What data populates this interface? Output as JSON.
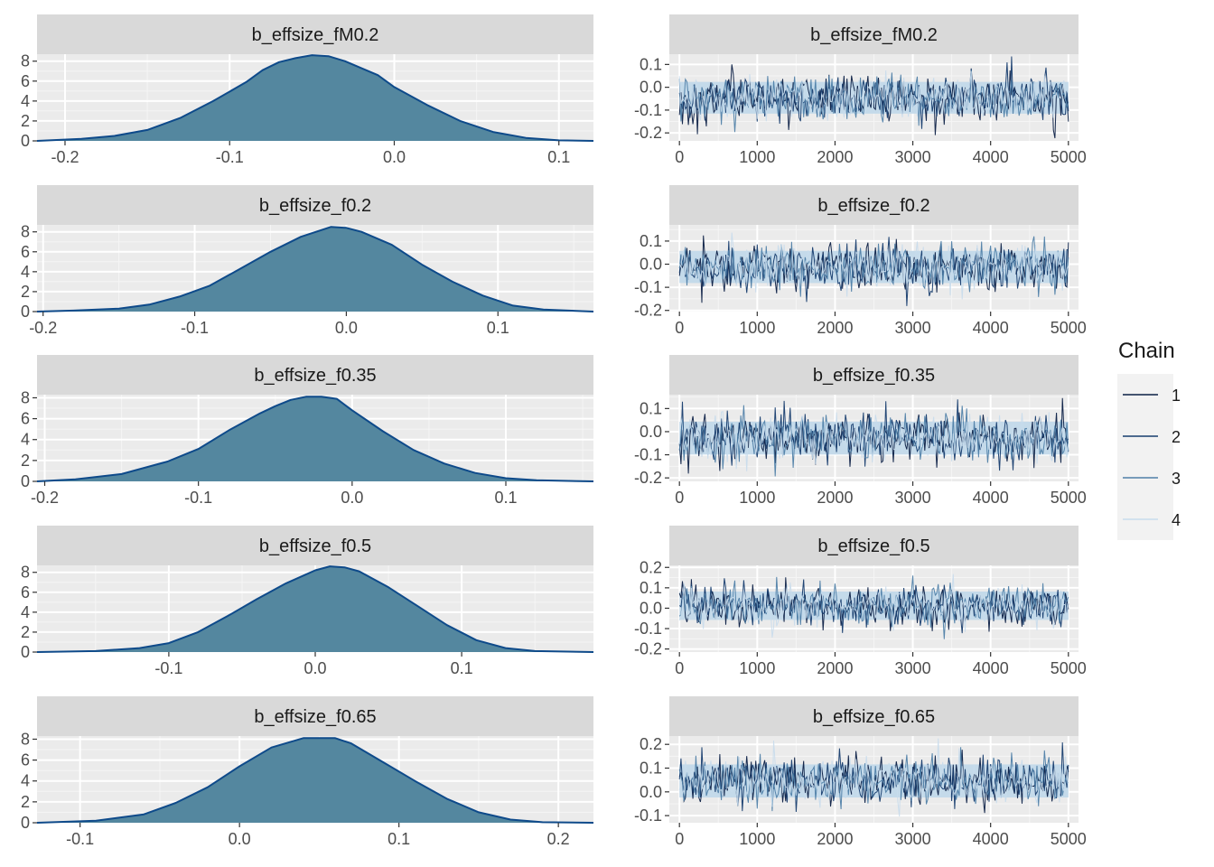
{
  "colors": {
    "panel_bg": "#EBEBEB",
    "strip_bg": "#D9D9D9",
    "grid_major": "#FFFFFF",
    "density_fill": "#54879F",
    "density_line": "#0E4A8A",
    "trace_band": "#C4DAEA"
  },
  "legend": {
    "title": "Chain",
    "items": [
      {
        "label": "1",
        "color": "#0B1F45"
      },
      {
        "label": "2",
        "color": "#163C6E"
      },
      {
        "label": "3",
        "color": "#4F7FA8"
      },
      {
        "label": "4",
        "color": "#C8DCEC"
      }
    ]
  },
  "chart_data": [
    {
      "type": "area",
      "kind": "density",
      "title": "b_effsize_fM0.2",
      "xlim": [
        -0.217,
        0.121
      ],
      "ylim": [
        0,
        8.7
      ],
      "x_ticks": [
        -0.2,
        -0.1,
        0.0,
        0.1
      ],
      "x_tick_labels": [
        "-0.2",
        "-0.1",
        "0.0",
        "0.1"
      ],
      "y_ticks": [
        0,
        2,
        4,
        6,
        8
      ],
      "y_tick_labels": [
        "0",
        "2",
        "4",
        "6",
        "8"
      ],
      "x": [
        -0.217,
        -0.19,
        -0.17,
        -0.15,
        -0.13,
        -0.11,
        -0.09,
        -0.08,
        -0.07,
        -0.06,
        -0.05,
        -0.04,
        -0.03,
        -0.02,
        -0.01,
        0.0,
        0.02,
        0.04,
        0.06,
        0.08,
        0.1,
        0.121
      ],
      "y": [
        0,
        0.2,
        0.5,
        1.1,
        2.3,
        4.0,
        5.9,
        7.1,
        7.9,
        8.3,
        8.6,
        8.5,
        8.0,
        7.3,
        6.6,
        5.4,
        3.6,
        2.0,
        0.9,
        0.3,
        0.05,
        0
      ]
    },
    {
      "type": "line",
      "kind": "trace",
      "title": "b_effsize_fM0.2",
      "xlim": [
        -130,
        5130
      ],
      "ylim": [
        -0.235,
        0.145
      ],
      "x_ticks": [
        0,
        1000,
        2000,
        3000,
        4000,
        5000
      ],
      "x_tick_labels": [
        "0",
        "1000",
        "2000",
        "3000",
        "4000",
        "5000"
      ],
      "y_ticks": [
        -0.2,
        -0.1,
        0.0,
        0.1
      ],
      "y_tick_labels": [
        "-0.2",
        "-0.1",
        "0.0",
        "0.1"
      ],
      "iterations": 5000,
      "series": [
        "1",
        "2",
        "3",
        "4"
      ],
      "mean": -0.046,
      "sd": 0.048
    },
    {
      "type": "area",
      "kind": "density",
      "title": "b_effsize_f0.2",
      "xlim": [
        -0.204,
        0.163
      ],
      "ylim": [
        0,
        8.7
      ],
      "x_ticks": [
        -0.2,
        -0.1,
        0.0,
        0.1
      ],
      "x_tick_labels": [
        "-0.2",
        "-0.1",
        "0.0",
        "0.1"
      ],
      "y_ticks": [
        0,
        2,
        4,
        6,
        8
      ],
      "y_tick_labels": [
        "0",
        "2",
        "4",
        "6",
        "8"
      ],
      "x": [
        -0.204,
        -0.18,
        -0.15,
        -0.13,
        -0.11,
        -0.09,
        -0.07,
        -0.05,
        -0.03,
        -0.01,
        0.0,
        0.01,
        0.03,
        0.05,
        0.07,
        0.09,
        0.11,
        0.13,
        0.163
      ],
      "y": [
        0,
        0.1,
        0.3,
        0.7,
        1.5,
        2.6,
        4.3,
        6.0,
        7.5,
        8.5,
        8.4,
        8.0,
        6.7,
        4.7,
        3.0,
        1.6,
        0.6,
        0.2,
        0
      ]
    },
    {
      "type": "line",
      "kind": "trace",
      "title": "b_effsize_f0.2",
      "xlim": [
        -130,
        5130
      ],
      "ylim": [
        -0.205,
        0.17
      ],
      "x_ticks": [
        0,
        1000,
        2000,
        3000,
        4000,
        5000
      ],
      "x_tick_labels": [
        "0",
        "1000",
        "2000",
        "3000",
        "4000",
        "5000"
      ],
      "y_ticks": [
        -0.2,
        -0.1,
        0.0,
        0.1
      ],
      "y_tick_labels": [
        "-0.2",
        "-0.1",
        "0.0",
        "0.1"
      ],
      "iterations": 5000,
      "series": [
        "1",
        "2",
        "3",
        "4"
      ],
      "mean": -0.012,
      "sd": 0.048
    },
    {
      "type": "area",
      "kind": "density",
      "title": "b_effsize_f0.35",
      "xlim": [
        -0.205,
        0.157
      ],
      "ylim": [
        0,
        8.3
      ],
      "x_ticks": [
        -0.2,
        -0.1,
        0.0,
        0.1
      ],
      "x_tick_labels": [
        "-0.2",
        "-0.1",
        "0.0",
        "0.1"
      ],
      "y_ticks": [
        0,
        2,
        4,
        6,
        8
      ],
      "y_tick_labels": [
        "0",
        "2",
        "4",
        "6",
        "8"
      ],
      "x": [
        -0.205,
        -0.18,
        -0.15,
        -0.12,
        -0.1,
        -0.08,
        -0.06,
        -0.05,
        -0.04,
        -0.03,
        -0.02,
        -0.01,
        0.0,
        0.02,
        0.04,
        0.06,
        0.08,
        0.1,
        0.12,
        0.157
      ],
      "y": [
        0,
        0.2,
        0.7,
        1.9,
        3.1,
        4.9,
        6.5,
        7.2,
        7.8,
        8.1,
        8.1,
        7.9,
        6.8,
        4.8,
        3.0,
        1.7,
        0.8,
        0.3,
        0.1,
        0
      ]
    },
    {
      "type": "line",
      "kind": "trace",
      "title": "b_effsize_f0.35",
      "xlim": [
        -130,
        5130
      ],
      "ylim": [
        -0.215,
        0.16
      ],
      "x_ticks": [
        0,
        1000,
        2000,
        3000,
        4000,
        5000
      ],
      "x_tick_labels": [
        "0",
        "1000",
        "2000",
        "3000",
        "4000",
        "5000"
      ],
      "y_ticks": [
        -0.2,
        -0.1,
        0.0,
        0.1
      ],
      "y_tick_labels": [
        "-0.2",
        "-0.1",
        "0.0",
        "0.1"
      ],
      "iterations": 5000,
      "series": [
        "1",
        "2",
        "3",
        "4"
      ],
      "mean": -0.028,
      "sd": 0.049
    },
    {
      "type": "area",
      "kind": "density",
      "title": "b_effsize_f0.5",
      "xlim": [
        -0.19,
        0.19
      ],
      "ylim": [
        0,
        8.7
      ],
      "x_ticks": [
        -0.1,
        0.0,
        0.1
      ],
      "x_tick_labels": [
        "-0.1",
        "0.0",
        "0.1"
      ],
      "y_ticks": [
        0,
        2,
        4,
        6,
        8
      ],
      "y_tick_labels": [
        "0",
        "2",
        "4",
        "6",
        "8"
      ],
      "x": [
        -0.19,
        -0.15,
        -0.12,
        -0.1,
        -0.08,
        -0.06,
        -0.04,
        -0.02,
        0.0,
        0.01,
        0.02,
        0.03,
        0.05,
        0.07,
        0.09,
        0.11,
        0.13,
        0.15,
        0.19
      ],
      "y": [
        0,
        0.1,
        0.4,
        0.9,
        2.0,
        3.6,
        5.3,
        6.9,
        8.2,
        8.6,
        8.5,
        8.1,
        6.5,
        4.6,
        2.7,
        1.2,
        0.4,
        0.1,
        0
      ]
    },
    {
      "type": "line",
      "kind": "trace",
      "title": "b_effsize_f0.5",
      "xlim": [
        -130,
        5130
      ],
      "ylim": [
        -0.215,
        0.21
      ],
      "x_ticks": [
        0,
        1000,
        2000,
        3000,
        4000,
        5000
      ],
      "x_tick_labels": [
        "0",
        "1000",
        "2000",
        "3000",
        "4000",
        "5000"
      ],
      "y_ticks": [
        -0.2,
        -0.1,
        0.0,
        0.1,
        0.2
      ],
      "y_tick_labels": [
        "-0.2",
        "-0.1",
        "0.0",
        "0.1",
        "0.2"
      ],
      "iterations": 5000,
      "series": [
        "1",
        "2",
        "3",
        "4"
      ],
      "mean": 0.012,
      "sd": 0.048
    },
    {
      "type": "area",
      "kind": "density",
      "title": "b_effsize_f0.65",
      "xlim": [
        -0.127,
        0.222
      ],
      "ylim": [
        0,
        8.3
      ],
      "x_ticks": [
        -0.1,
        0.0,
        0.1,
        0.2
      ],
      "x_tick_labels": [
        "-0.1",
        "0.0",
        "0.1",
        "0.2"
      ],
      "y_ticks": [
        0,
        2,
        4,
        6,
        8
      ],
      "y_tick_labels": [
        "0",
        "2",
        "4",
        "6",
        "8"
      ],
      "x": [
        -0.127,
        -0.09,
        -0.06,
        -0.04,
        -0.02,
        0.0,
        0.02,
        0.04,
        0.05,
        0.06,
        0.07,
        0.09,
        0.11,
        0.13,
        0.15,
        0.17,
        0.19,
        0.222
      ],
      "y": [
        0,
        0.2,
        0.8,
        1.9,
        3.4,
        5.4,
        7.2,
        8.1,
        8.1,
        8.1,
        7.6,
        5.8,
        4.0,
        2.3,
        1.0,
        0.3,
        0.05,
        0
      ]
    },
    {
      "type": "line",
      "kind": "trace",
      "title": "b_effsize_f0.65",
      "xlim": [
        -130,
        5130
      ],
      "ylim": [
        -0.13,
        0.235
      ],
      "x_ticks": [
        0,
        1000,
        2000,
        3000,
        4000,
        5000
      ],
      "x_tick_labels": [
        "0",
        "1000",
        "2000",
        "3000",
        "4000",
        "5000"
      ],
      "y_ticks": [
        -0.1,
        0.0,
        0.1,
        0.2
      ],
      "y_tick_labels": [
        "-0.1",
        "0.0",
        "0.1",
        "0.2"
      ],
      "iterations": 5000,
      "series": [
        "1",
        "2",
        "3",
        "4"
      ],
      "mean": 0.046,
      "sd": 0.048
    }
  ]
}
